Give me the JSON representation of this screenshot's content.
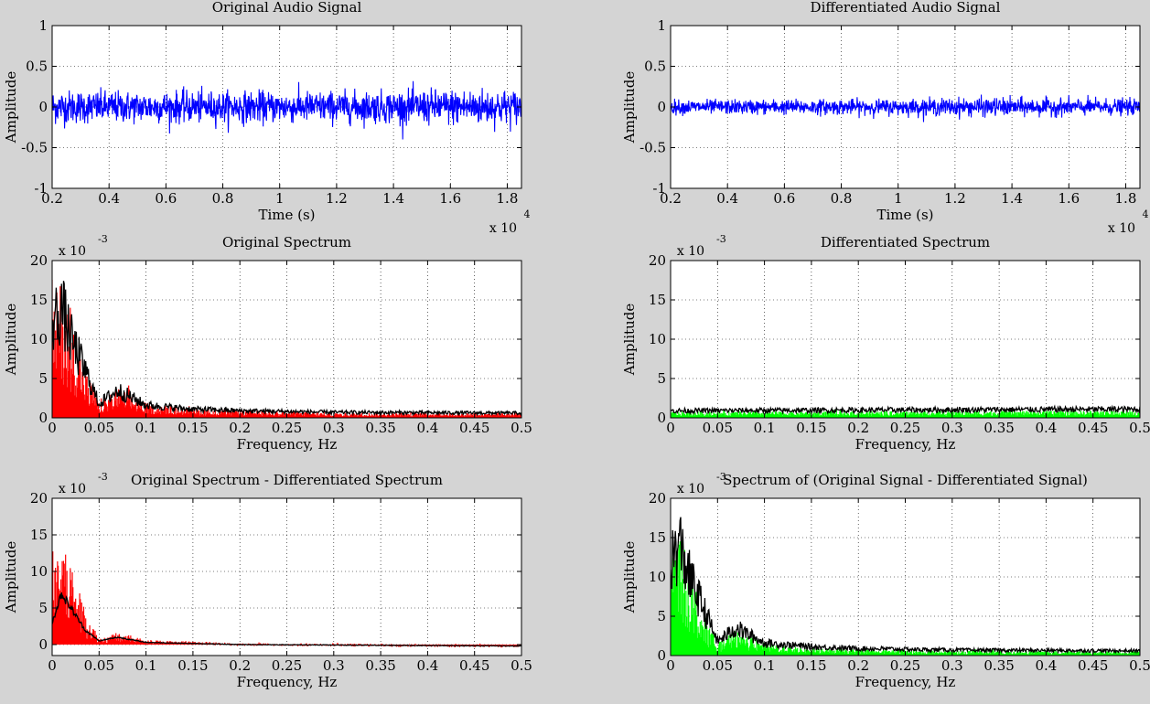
{
  "chart_data": [
    {
      "type": "line",
      "title": "Original Audio Signal",
      "xlabel": "Time (s)",
      "ylabel": "Amplitude",
      "x_multiplier": "x 10",
      "x_exponent": "4",
      "xlim": [
        0.2,
        1.85
      ],
      "ylim": [
        -1,
        1
      ],
      "xticks": [
        0.2,
        0.4,
        0.6,
        0.8,
        1,
        1.2,
        1.4,
        1.6,
        1.8
      ],
      "yticks": [
        -1,
        -0.5,
        0,
        0.5,
        1
      ],
      "grid": true,
      "series": [
        {
          "color": "#0000ff",
          "style": "noise",
          "mean": 0,
          "envelope": [
            [
              0.2,
              0.12
            ],
            [
              0.5,
              0.11
            ],
            [
              1.0,
              0.11
            ],
            [
              1.3,
              0.11
            ],
            [
              1.7,
              0.13
            ],
            [
              1.85,
              0.12
            ]
          ],
          "points": 1400
        }
      ]
    },
    {
      "type": "line",
      "title": "Differentiated Audio Signal",
      "xlabel": "Time (s)",
      "ylabel": "Amplitude",
      "x_multiplier": "x 10",
      "x_exponent": "4",
      "xlim": [
        0.2,
        1.85
      ],
      "ylim": [
        -1,
        1
      ],
      "xticks": [
        0.2,
        0.4,
        0.6,
        0.8,
        1,
        1.2,
        1.4,
        1.6,
        1.8
      ],
      "yticks": [
        -1,
        -0.5,
        0,
        0.5,
        1
      ],
      "grid": true,
      "series": [
        {
          "color": "#0000ff",
          "style": "noise",
          "mean": 0,
          "envelope": [
            [
              0.2,
              0.05
            ],
            [
              1.0,
              0.055
            ],
            [
              1.3,
              0.065
            ],
            [
              1.85,
              0.055
            ]
          ],
          "points": 1400
        }
      ]
    },
    {
      "type": "area",
      "title": "Original Spectrum",
      "xlabel": "Frequency, Hz",
      "ylabel": "Amplitude",
      "y_multiplier": "x 10",
      "y_exponent": "-3",
      "xlim": [
        0,
        0.5
      ],
      "ylim": [
        0,
        20
      ],
      "xticks": [
        0,
        0.05,
        0.1,
        0.15,
        0.2,
        0.25,
        0.3,
        0.35,
        0.4,
        0.45,
        0.5
      ],
      "yticks": [
        0,
        5,
        10,
        15,
        20
      ],
      "grid": true,
      "series": [
        {
          "color": "#ff0000",
          "style": "fill",
          "envelope": [
            [
              0,
              10
            ],
            [
              0.01,
              11
            ],
            [
              0.02,
              8
            ],
            [
              0.035,
              4
            ],
            [
              0.05,
              1.2
            ],
            [
              0.07,
              2.4
            ],
            [
              0.1,
              1.2
            ],
            [
              0.15,
              0.7
            ],
            [
              0.2,
              0.6
            ],
            [
              0.3,
              0.4
            ],
            [
              0.5,
              0.4
            ]
          ],
          "jitter": 0.6,
          "points": 700
        },
        {
          "color": "#000000",
          "style": "line",
          "envelope": [
            [
              0,
              12
            ],
            [
              0.01,
              14
            ],
            [
              0.02,
              10
            ],
            [
              0.035,
              6
            ],
            [
              0.05,
              1.8
            ],
            [
              0.07,
              3.5
            ],
            [
              0.1,
              1.6
            ],
            [
              0.15,
              1.1
            ],
            [
              0.2,
              0.9
            ],
            [
              0.3,
              0.7
            ],
            [
              0.5,
              0.6
            ]
          ],
          "jitter": 0.35,
          "points": 700
        }
      ]
    },
    {
      "type": "area",
      "title": "Differentiated Spectrum",
      "xlabel": "Frequency, Hz",
      "ylabel": "Amplitude",
      "y_multiplier": "x 10",
      "y_exponent": "-3",
      "xlim": [
        0,
        0.5
      ],
      "ylim": [
        0,
        20
      ],
      "xticks": [
        0,
        0.05,
        0.1,
        0.15,
        0.2,
        0.25,
        0.3,
        0.35,
        0.4,
        0.45,
        0.5
      ],
      "yticks": [
        0,
        5,
        10,
        15,
        20
      ],
      "grid": true,
      "series": [
        {
          "color": "#00ff00",
          "style": "fill",
          "envelope": [
            [
              0,
              0.5
            ],
            [
              0.5,
              0.6
            ]
          ],
          "jitter": 0.55,
          "points": 700
        },
        {
          "color": "#000000",
          "style": "line",
          "envelope": [
            [
              0,
              0.9
            ],
            [
              0.5,
              1.1
            ]
          ],
          "jitter": 0.35,
          "points": 700
        }
      ]
    },
    {
      "type": "area",
      "title": "Original Spectrum - Differentiated Spectrum",
      "xlabel": "Frequency, Hz",
      "ylabel": "Amplitude",
      "y_multiplier": "x 10",
      "y_exponent": "-3",
      "xlim": [
        0,
        0.5
      ],
      "ylim": [
        -1.5,
        20
      ],
      "xticks": [
        0,
        0.05,
        0.1,
        0.15,
        0.2,
        0.25,
        0.3,
        0.35,
        0.4,
        0.45,
        0.5
      ],
      "yticks": [
        0,
        5,
        10,
        15,
        20
      ],
      "grid": true,
      "series": [
        {
          "color": "#ff0000",
          "style": "fill",
          "envelope": [
            [
              0,
              8
            ],
            [
              0.01,
              9
            ],
            [
              0.02,
              7
            ],
            [
              0.035,
              3
            ],
            [
              0.05,
              0.5
            ],
            [
              0.07,
              1
            ],
            [
              0.1,
              0.4
            ],
            [
              0.2,
              0
            ],
            [
              0.5,
              -0.2
            ]
          ],
          "jitter": 0.7,
          "points": 700
        },
        {
          "color": "#000000",
          "style": "line",
          "envelope": [
            [
              0,
              3
            ],
            [
              0.01,
              7
            ],
            [
              0.02,
              5
            ],
            [
              0.035,
              2
            ],
            [
              0.05,
              0.5
            ],
            [
              0.07,
              1
            ],
            [
              0.1,
              0.3
            ],
            [
              0.2,
              0
            ],
            [
              0.5,
              -0.2
            ]
          ],
          "jitter": 0.1,
          "points": 700
        }
      ]
    },
    {
      "type": "area",
      "title": "Spectrum of (Original Signal - Differentiated Signal)",
      "xlabel": "Frequency, Hz",
      "ylabel": "Amplitude",
      "y_multiplier": "x 10",
      "y_exponent": "-3",
      "xlim": [
        0,
        0.5
      ],
      "ylim": [
        0,
        20
      ],
      "xticks": [
        0,
        0.05,
        0.1,
        0.15,
        0.2,
        0.25,
        0.3,
        0.35,
        0.4,
        0.45,
        0.5
      ],
      "yticks": [
        0,
        5,
        10,
        15,
        20
      ],
      "grid": true,
      "series": [
        {
          "color": "#00ff00",
          "style": "fill",
          "envelope": [
            [
              0,
              9
            ],
            [
              0.01,
              10
            ],
            [
              0.02,
              7
            ],
            [
              0.035,
              3.5
            ],
            [
              0.05,
              1
            ],
            [
              0.07,
              2
            ],
            [
              0.1,
              1
            ],
            [
              0.15,
              0.6
            ],
            [
              0.2,
              0.5
            ],
            [
              0.3,
              0.4
            ],
            [
              0.5,
              0.35
            ]
          ],
          "jitter": 0.6,
          "points": 700
        },
        {
          "color": "#000000",
          "style": "line",
          "envelope": [
            [
              0,
              12
            ],
            [
              0.01,
              14
            ],
            [
              0.02,
              10
            ],
            [
              0.035,
              6
            ],
            [
              0.05,
              1.8
            ],
            [
              0.07,
              3.5
            ],
            [
              0.1,
              1.6
            ],
            [
              0.15,
              1.1
            ],
            [
              0.2,
              0.9
            ],
            [
              0.3,
              0.7
            ],
            [
              0.5,
              0.6
            ]
          ],
          "jitter": 0.35,
          "points": 700
        }
      ]
    }
  ]
}
